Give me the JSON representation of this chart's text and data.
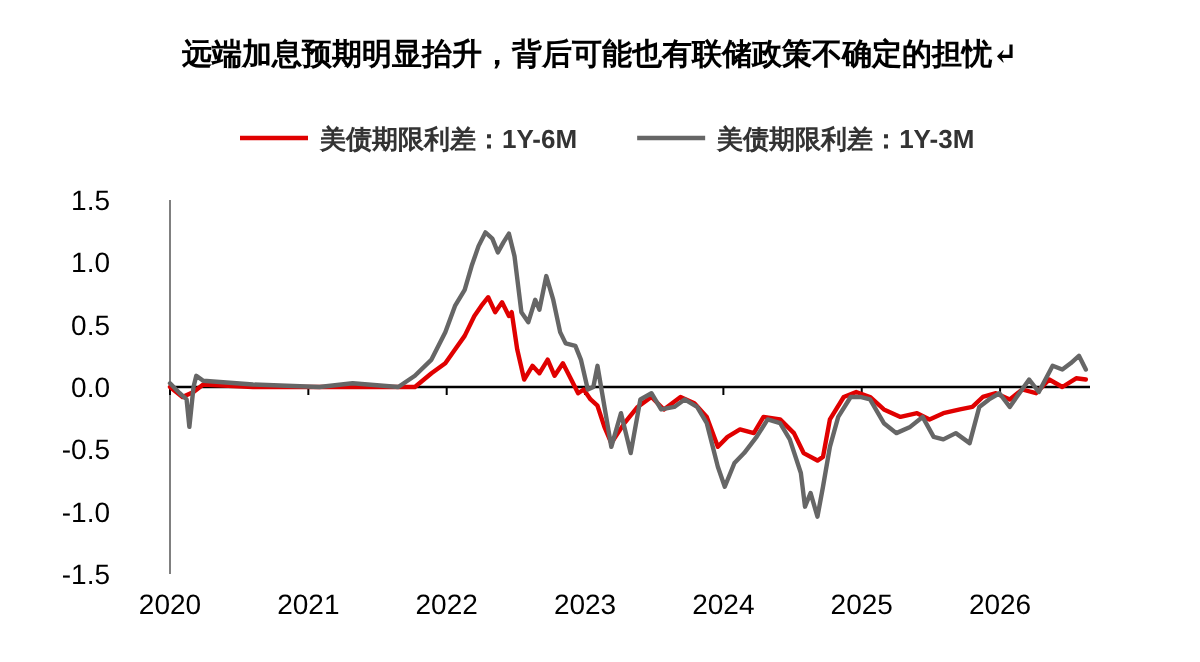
{
  "chart_data": {
    "type": "line",
    "title": "远端加息预期明显抬升，背后可能也有联储政策不确定的担忧↵",
    "legend": "top",
    "ref_lines": [
      {
        "axis": "y",
        "value": 0,
        "color": "#000000"
      }
    ],
    "xlim": [
      2020,
      2026.65
    ],
    "ylim": [
      -1.5,
      1.5
    ],
    "xticks": [
      2020,
      2021,
      2022,
      2023,
      2024,
      2025,
      2026
    ],
    "yticks": [
      {
        "value": -1.5,
        "label": "-1.5"
      },
      {
        "value": -1,
        "label": "-1.0"
      },
      {
        "value": -0.5,
        "label": "-0.5"
      },
      {
        "value": 0,
        "label": "0.0"
      },
      {
        "value": 0.5,
        "label": "0.5"
      },
      {
        "value": 1,
        "label": "1.0"
      },
      {
        "value": 1.5,
        "label": "1.5"
      }
    ],
    "series": [
      {
        "name": "美债期限利差：1Y-6M",
        "color": "#e00000",
        "x": [
          2020.0,
          2020.09,
          2020.17,
          2020.24,
          2020.6,
          2021.08,
          2021.65,
          2021.77,
          2021.89,
          2021.99,
          2022.06,
          2022.13,
          2022.2,
          2022.25,
          2022.3,
          2022.35,
          2022.4,
          2022.45,
          2022.47,
          2022.51,
          2022.56,
          2022.62,
          2022.67,
          2022.73,
          2022.78,
          2022.84,
          2022.9,
          2022.95,
          2022.99,
          2023.04,
          2023.09,
          2023.14,
          2023.19,
          2023.285,
          2023.38,
          2023.48,
          2023.57,
          2023.69,
          2023.79,
          2023.88,
          2023.96,
          2024.03,
          2024.12,
          2024.22,
          2024.29,
          2024.41,
          2024.51,
          2024.58,
          2024.68,
          2024.72,
          2024.77,
          2024.87,
          2024.96,
          2025.06,
          2025.16,
          2025.28,
          2025.4,
          2025.49,
          2025.59,
          2025.71,
          2025.8,
          2025.875,
          2025.97,
          2026.07,
          2026.16,
          2026.26,
          2026.355,
          2026.45,
          2026.55,
          2026.62
        ],
        "values": [
          0.0,
          -0.08,
          -0.04,
          0.02,
          0.0,
          0.0,
          0.0,
          0.0,
          0.11,
          0.19,
          0.3,
          0.41,
          0.57,
          0.65,
          0.72,
          0.6,
          0.68,
          0.57,
          0.6,
          0.3,
          0.06,
          0.17,
          0.11,
          0.22,
          0.09,
          0.19,
          0.06,
          -0.05,
          -0.02,
          -0.1,
          -0.15,
          -0.32,
          -0.45,
          -0.29,
          -0.16,
          -0.08,
          -0.18,
          -0.08,
          -0.13,
          -0.24,
          -0.48,
          -0.4,
          -0.34,
          -0.37,
          -0.24,
          -0.26,
          -0.37,
          -0.53,
          -0.59,
          -0.56,
          -0.26,
          -0.08,
          -0.04,
          -0.08,
          -0.18,
          -0.24,
          -0.21,
          -0.26,
          -0.21,
          -0.18,
          -0.16,
          -0.08,
          -0.05,
          -0.1,
          -0.02,
          -0.05,
          0.06,
          0.0,
          0.07,
          0.06
        ]
      },
      {
        "name": "美债期限利差：1Y-3M",
        "color": "#666666",
        "x": [
          2020.0,
          2020.07,
          2020.12,
          2020.14,
          2020.17,
          2020.19,
          2020.24,
          2020.6,
          2021.08,
          2021.32,
          2021.65,
          2021.77,
          2021.89,
          2021.99,
          2022.06,
          2022.13,
          2022.18,
          2022.23,
          2022.28,
          2022.33,
          2022.37,
          2022.41,
          2022.45,
          2022.49,
          2022.54,
          2022.59,
          2022.64,
          2022.67,
          2022.72,
          2022.77,
          2022.82,
          2022.86,
          2022.93,
          2022.97,
          2023.02,
          2023.06,
          2023.09,
          2023.19,
          2023.26,
          2023.33,
          2023.4,
          2023.48,
          2023.55,
          2023.645,
          2023.72,
          2023.81,
          2023.88,
          2023.96,
          2024.01,
          2024.08,
          2024.15,
          2024.24,
          2024.32,
          2024.41,
          2024.48,
          2024.56,
          2024.59,
          2024.63,
          2024.68,
          2024.72,
          2024.77,
          2024.83,
          2024.92,
          2024.99,
          2025.06,
          2025.16,
          2025.25,
          2025.35,
          2025.44,
          2025.52,
          2025.59,
          2025.68,
          2025.78,
          2025.85,
          2025.92,
          2025.995,
          2026.07,
          2026.12,
          2026.21,
          2026.28,
          2026.38,
          2026.45,
          2026.51,
          2026.57,
          2026.62
        ],
        "values": [
          0.03,
          -0.05,
          -0.1,
          -0.32,
          0.0,
          0.09,
          0.05,
          0.02,
          0.0,
          0.03,
          0.0,
          0.09,
          0.22,
          0.44,
          0.65,
          0.78,
          0.97,
          1.13,
          1.24,
          1.19,
          1.08,
          1.16,
          1.23,
          1.05,
          0.6,
          0.52,
          0.7,
          0.62,
          0.89,
          0.7,
          0.44,
          0.35,
          0.33,
          0.22,
          -0.02,
          0.0,
          0.17,
          -0.48,
          -0.21,
          -0.53,
          -0.1,
          -0.05,
          -0.18,
          -0.16,
          -0.1,
          -0.16,
          -0.29,
          -0.64,
          -0.8,
          -0.61,
          -0.53,
          -0.4,
          -0.26,
          -0.29,
          -0.42,
          -0.69,
          -0.96,
          -0.85,
          -1.04,
          -0.8,
          -0.48,
          -0.24,
          -0.08,
          -0.08,
          -0.1,
          -0.29,
          -0.37,
          -0.32,
          -0.24,
          -0.4,
          -0.42,
          -0.37,
          -0.45,
          -0.16,
          -0.1,
          -0.05,
          -0.16,
          -0.08,
          0.06,
          -0.04,
          0.17,
          0.14,
          0.19,
          0.25,
          0.14
        ]
      }
    ]
  }
}
